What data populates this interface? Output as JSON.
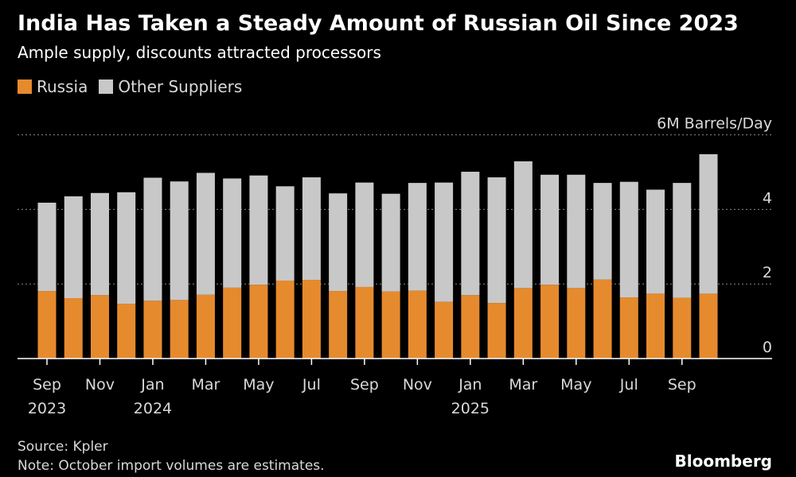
{
  "title": "India Has Taken a Steady Amount of Russian Oil Since 2023",
  "subtitle": "Ample supply, discounts attracted processors",
  "source": "Source: Kpler",
  "note": "Note: October import volumes are estimates.",
  "brand": "Bloomberg",
  "colors": {
    "russia": "#e68a2e",
    "other": "#c8c8c8",
    "grid": "#8a8a8a",
    "axis": "#ffffff"
  },
  "chart_data": {
    "type": "bar",
    "stacked": true,
    "unit_label": "6M Barrels/Day",
    "ylim": [
      0,
      6
    ],
    "yticks": [
      0,
      2,
      4,
      6
    ],
    "ytick_labels": [
      "0",
      "2",
      "4",
      "6M Barrels/Day"
    ],
    "grid": true,
    "legend_position": "top-left",
    "categories": [
      "2023-09",
      "2023-10",
      "2023-11",
      "2023-12",
      "2024-01",
      "2024-02",
      "2024-03",
      "2024-04",
      "2024-05",
      "2024-06",
      "2024-07",
      "2024-08",
      "2024-09",
      "2024-10",
      "2024-11",
      "2024-12",
      "2025-01",
      "2025-02",
      "2025-03",
      "2025-04",
      "2025-05",
      "2025-06",
      "2025-07",
      "2025-08",
      "2025-09",
      "2025-10"
    ],
    "tick_labels": [
      {
        "index": 0,
        "month": "Sep",
        "year": "2023"
      },
      {
        "index": 2,
        "month": "Nov",
        "year": ""
      },
      {
        "index": 4,
        "month": "Jan",
        "year": "2024"
      },
      {
        "index": 6,
        "month": "Mar",
        "year": ""
      },
      {
        "index": 8,
        "month": "May",
        "year": ""
      },
      {
        "index": 10,
        "month": "Jul",
        "year": ""
      },
      {
        "index": 12,
        "month": "Sep",
        "year": ""
      },
      {
        "index": 14,
        "month": "Nov",
        "year": ""
      },
      {
        "index": 16,
        "month": "Jan",
        "year": "2025"
      },
      {
        "index": 18,
        "month": "Mar",
        "year": ""
      },
      {
        "index": 20,
        "month": "May",
        "year": ""
      },
      {
        "index": 22,
        "month": "Jul",
        "year": ""
      },
      {
        "index": 24,
        "month": "Sep",
        "year": ""
      }
    ],
    "series": [
      {
        "name": "Russia",
        "values": [
          1.81,
          1.62,
          1.7,
          1.47,
          1.55,
          1.57,
          1.71,
          1.9,
          1.98,
          2.09,
          2.11,
          1.81,
          1.92,
          1.8,
          1.82,
          1.52,
          1.7,
          1.49,
          1.89,
          1.98,
          1.89,
          2.12,
          1.64,
          1.74,
          1.63,
          1.74
        ]
      },
      {
        "name": "Other Suppliers",
        "values": [
          2.37,
          2.73,
          2.74,
          2.99,
          3.3,
          3.18,
          3.27,
          2.93,
          2.93,
          2.53,
          2.75,
          2.62,
          2.8,
          2.62,
          2.89,
          3.2,
          3.31,
          3.37,
          3.4,
          2.95,
          3.04,
          2.59,
          3.1,
          2.79,
          3.08,
          3.74
        ]
      }
    ]
  }
}
